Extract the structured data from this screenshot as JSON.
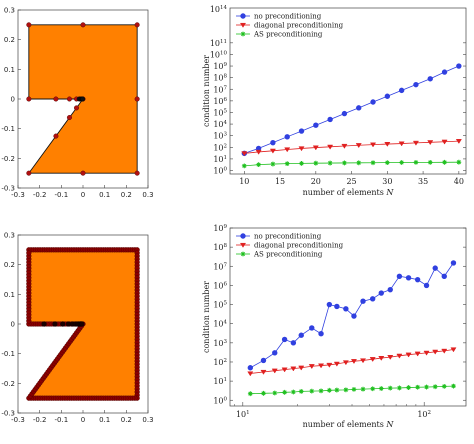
{
  "chart_data": [
    {
      "type": "scatter",
      "subtype": "mesh-domain",
      "title": "",
      "fill_color": "#ff8000",
      "node_color": "#b01010",
      "xlim": [
        -0.3,
        0.3
      ],
      "ylim": [
        -0.3,
        0.3
      ],
      "xticks": [
        "-0.3",
        "-0.2",
        "-0.1",
        "0",
        "0.1",
        "0.2",
        "0.3"
      ],
      "yticks": [
        "-0.3",
        "-0.2",
        "-0.1",
        "0",
        "0.1",
        "0.2",
        "0.3"
      ],
      "polygon": [
        [
          -0.25,
          0.25
        ],
        [
          0.25,
          0.25
        ],
        [
          0.25,
          -0.25
        ],
        [
          0.0,
          -0.25
        ],
        [
          -0.25,
          -0.25
        ],
        [
          0.0,
          0.0
        ],
        [
          -0.25,
          0.0
        ]
      ],
      "nodes": [
        [
          -0.25,
          0.25
        ],
        [
          0.0,
          0.25
        ],
        [
          0.25,
          0.25
        ],
        [
          -0.25,
          0.0
        ],
        [
          -0.125,
          0.0
        ],
        [
          -0.0625,
          0.0
        ],
        [
          -0.03,
          0.0
        ],
        [
          -0.015,
          0.0
        ],
        [
          0.0,
          0.0
        ],
        [
          0.25,
          0.0
        ],
        [
          -0.25,
          -0.25
        ],
        [
          0.0,
          -0.25
        ],
        [
          0.25,
          -0.25
        ],
        [
          -0.125,
          -0.125
        ],
        [
          -0.0625,
          -0.0625
        ],
        [
          -0.03,
          -0.03
        ]
      ]
    },
    {
      "type": "line",
      "log_y": true,
      "xlabel": "number of elements N",
      "ylabel": "condition number",
      "xlim": [
        8,
        41
      ],
      "xticks": [
        "10",
        "15",
        "20",
        "25",
        "30",
        "35",
        "40"
      ],
      "yticks": [
        "10^0",
        "10^1",
        "10^2",
        "10^3",
        "10^4",
        "10^5",
        "10^6",
        "10^7",
        "10^8",
        "10^9",
        "10^10",
        "10^11"
      ],
      "y_axis_top_label": "10^14",
      "legend_position": "top-left",
      "x": [
        10,
        12,
        14,
        16,
        18,
        20,
        22,
        24,
        26,
        28,
        30,
        32,
        34,
        36,
        38,
        40
      ],
      "series": [
        {
          "name": "no preconditioning",
          "color": "#3040e0",
          "marker": "circle",
          "values": [
            30,
            80,
            250,
            800,
            2500,
            8000,
            25000,
            80000,
            250000,
            800000,
            2500000,
            8000000,
            25000000,
            80000000,
            300000000,
            1000000000
          ]
        },
        {
          "name": "diagonal preconditioning",
          "color": "#e02020",
          "marker": "triangle",
          "values": [
            30,
            40,
            50,
            65,
            80,
            95,
            110,
            130,
            150,
            170,
            190,
            210,
            240,
            270,
            300,
            340
          ]
        },
        {
          "name": "AS preconditioning",
          "color": "#20c020",
          "marker": "star",
          "values": [
            2.5,
            3.2,
            3.6,
            3.9,
            4.1,
            4.3,
            4.4,
            4.5,
            4.6,
            4.7,
            4.8,
            4.9,
            5.0,
            5.0,
            5.1,
            5.2
          ]
        }
      ]
    },
    {
      "type": "scatter",
      "subtype": "mesh-domain",
      "title": "",
      "fill_color": "#ff8000",
      "node_color": "#8a0000",
      "xlim": [
        -0.3,
        0.3
      ],
      "ylim": [
        -0.3,
        0.3
      ],
      "xticks": [
        "-0.3",
        "-0.2",
        "-0.1",
        "0",
        "0.1",
        "0.2",
        "0.3"
      ],
      "yticks": [
        "-0.3",
        "-0.2",
        "-0.1",
        "0",
        "0.1",
        "0.2",
        "0.3"
      ],
      "polygon": [
        [
          -0.25,
          0.25
        ],
        [
          0.25,
          0.25
        ],
        [
          0.25,
          -0.25
        ],
        [
          0.0,
          -0.25
        ],
        [
          -0.25,
          -0.25
        ],
        [
          0.0,
          0.0
        ],
        [
          -0.25,
          0.0
        ]
      ],
      "refined_boundary": true
    },
    {
      "type": "line",
      "log_x": true,
      "log_y": true,
      "xlabel": "number of elements N",
      "ylabel": "condition number",
      "xlim": [
        8.5,
        170
      ],
      "xticks": [
        "10^1",
        "10^2"
      ],
      "yticks": [
        "10^0",
        "10^1",
        "10^2",
        "10^3",
        "10^4",
        "10^5",
        "10^6",
        "10^7",
        "10^8",
        "10^9"
      ],
      "legend_position": "top-left",
      "x": [
        11,
        13,
        15,
        17,
        19,
        21,
        24,
        27,
        30,
        33,
        37,
        41,
        46,
        52,
        58,
        65,
        73,
        82,
        92,
        103,
        115,
        129,
        145
      ],
      "series": [
        {
          "name": "no preconditioning",
          "color": "#3040e0",
          "marker": "circle",
          "values": [
            50,
            120,
            300,
            1500,
            1000,
            2500,
            6000,
            3000,
            100000,
            80000,
            60000,
            25000,
            150000,
            200000,
            400000,
            600000,
            3000000,
            2500000,
            2000000,
            1000000,
            8000000,
            3000000,
            15000000
          ]
        },
        {
          "name": "diagonal preconditioning",
          "color": "#e02020",
          "marker": "triangle",
          "values": [
            25,
            30,
            35,
            40,
            45,
            50,
            60,
            65,
            70,
            80,
            95,
            110,
            120,
            140,
            160,
            180,
            210,
            240,
            270,
            300,
            340,
            380,
            450
          ]
        },
        {
          "name": "AS preconditioning",
          "color": "#20c020",
          "marker": "star",
          "values": [
            2.2,
            2.3,
            2.4,
            2.6,
            2.7,
            2.9,
            3.0,
            3.1,
            3.3,
            3.4,
            3.5,
            3.7,
            3.8,
            4.0,
            4.1,
            4.3,
            4.4,
            4.6,
            4.8,
            4.9,
            5.1,
            5.3,
            5.5
          ]
        }
      ]
    }
  ]
}
